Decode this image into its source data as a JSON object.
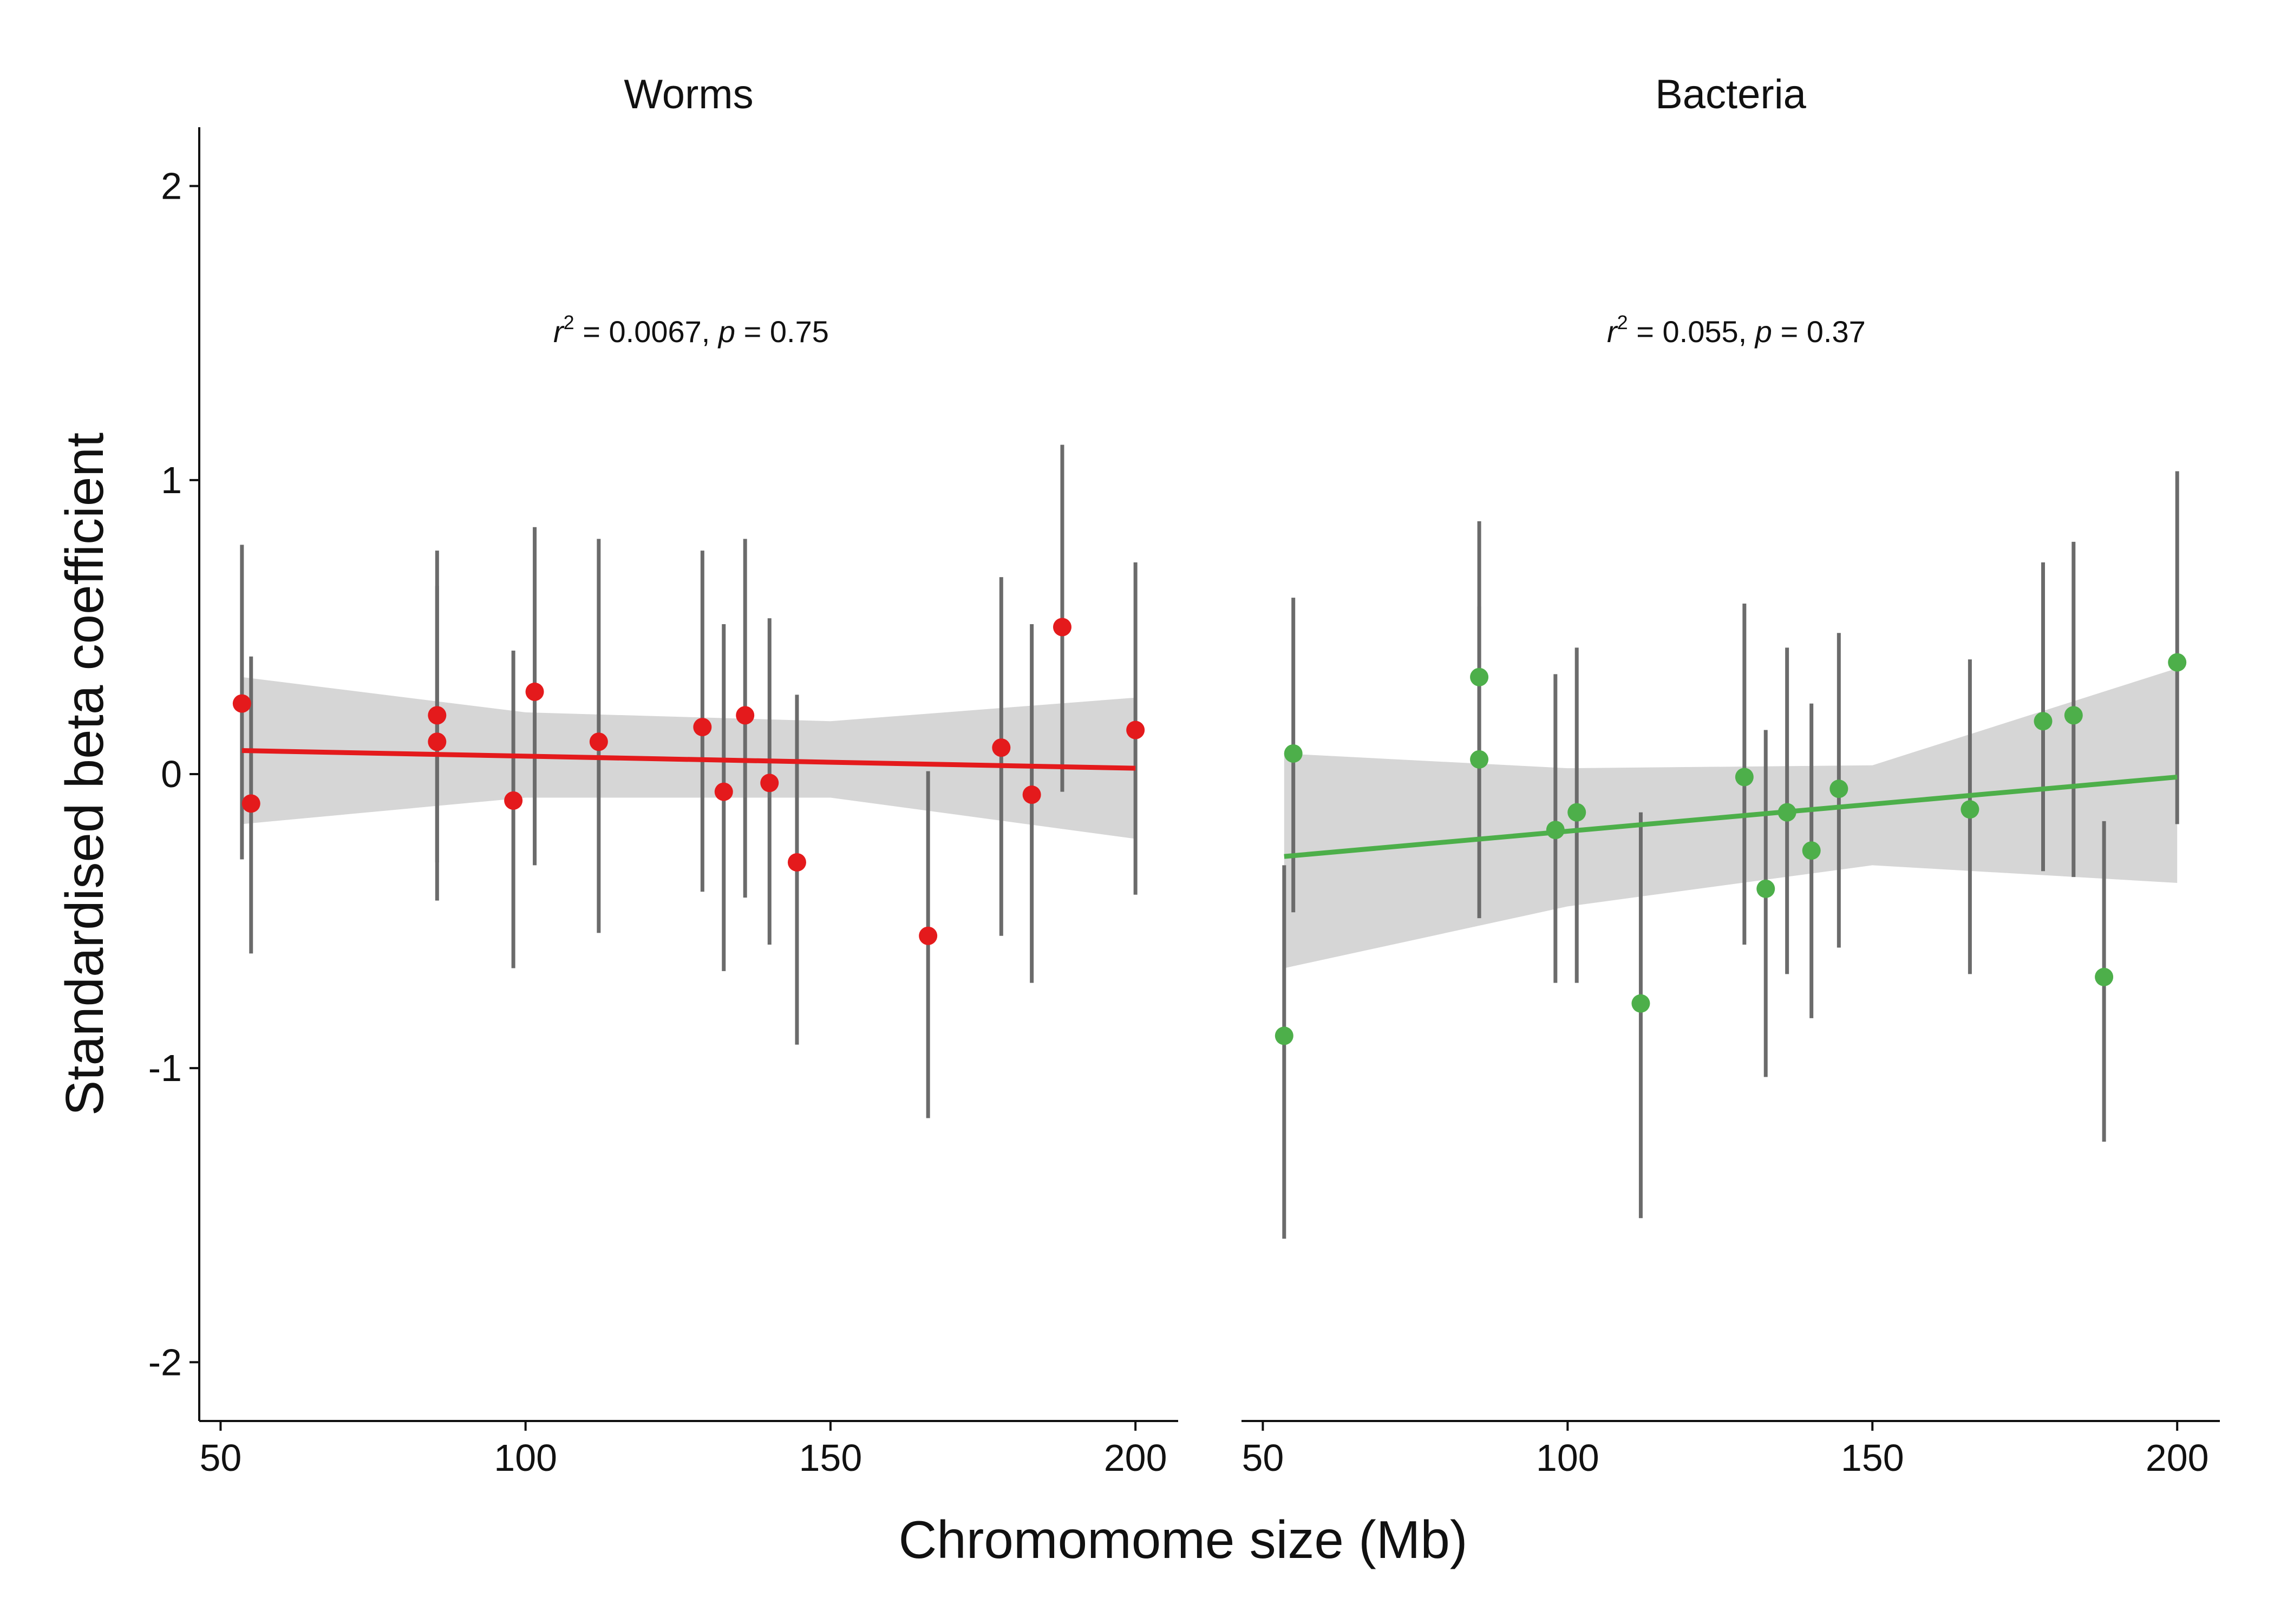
{
  "chart_data": {
    "type": "scatter",
    "xlabel": "Chromomome size (Mb)",
    "ylabel": "Standardised beta coefficient",
    "xlim": [
      46.5,
      207
    ],
    "ylim": [
      -2.2,
      2.2
    ],
    "x_ticks": [
      50,
      100,
      150,
      200
    ],
    "y_ticks": [
      2,
      1,
      0,
      -1,
      -2
    ],
    "y_tick_labels": [
      "2",
      "1",
      "0",
      "-1",
      "-2"
    ],
    "grid": false,
    "panels": [
      {
        "title": "Worms",
        "annotation": {
          "r2": "0.0067",
          "p": "0.75"
        },
        "point_color": "#e41a1c",
        "line_color": "#e41a1c",
        "band_color": "#d6d6d6",
        "fit": {
          "x": [
            53.5,
            200
          ],
          "y": [
            0.08,
            0.02
          ]
        },
        "band": {
          "x": [
            53.5,
            100,
            150,
            200
          ],
          "upper": [
            0.33,
            0.21,
            0.18,
            0.26
          ],
          "lower": [
            -0.17,
            -0.08,
            -0.08,
            -0.22
          ]
        },
        "points": [
          {
            "x": 53.5,
            "y": 0.24,
            "ymin": -0.29,
            "ymax": 0.78
          },
          {
            "x": 55,
            "y": -0.1,
            "ymin": -0.61,
            "ymax": 0.4
          },
          {
            "x": 85.5,
            "y": 0.2,
            "ymin": -0.3,
            "ymax": 0.76
          },
          {
            "x": 85.5,
            "y": 0.11,
            "ymin": -0.43,
            "ymax": 0.64
          },
          {
            "x": 98,
            "y": -0.09,
            "ymin": -0.66,
            "ymax": 0.42
          },
          {
            "x": 101.5,
            "y": 0.28,
            "ymin": -0.31,
            "ymax": 0.84
          },
          {
            "x": 112,
            "y": 0.11,
            "ymin": -0.54,
            "ymax": 0.8
          },
          {
            "x": 129,
            "y": 0.16,
            "ymin": -0.4,
            "ymax": 0.76
          },
          {
            "x": 132.5,
            "y": -0.06,
            "ymin": -0.67,
            "ymax": 0.51
          },
          {
            "x": 136,
            "y": 0.2,
            "ymin": -0.42,
            "ymax": 0.8
          },
          {
            "x": 140,
            "y": -0.03,
            "ymin": -0.58,
            "ymax": 0.53
          },
          {
            "x": 144.5,
            "y": -0.3,
            "ymin": -0.92,
            "ymax": 0.27
          },
          {
            "x": 166,
            "y": -0.55,
            "ymin": -1.17,
            "ymax": 0.01
          },
          {
            "x": 178,
            "y": 0.09,
            "ymin": -0.55,
            "ymax": 0.67
          },
          {
            "x": 183,
            "y": -0.07,
            "ymin": -0.71,
            "ymax": 0.51
          },
          {
            "x": 188,
            "y": 0.5,
            "ymin": -0.06,
            "ymax": 1.12
          },
          {
            "x": 200,
            "y": 0.15,
            "ymin": -0.41,
            "ymax": 0.72
          }
        ]
      },
      {
        "title": "Bacteria",
        "annotation": {
          "r2": "0.055",
          "p": "0.37"
        },
        "point_color": "#4daf4a",
        "line_color": "#4daf4a",
        "band_color": "#d6d6d6",
        "fit": {
          "x": [
            53.5,
            200
          ],
          "y": [
            -0.28,
            -0.01
          ]
        },
        "band": {
          "x": [
            53.5,
            100,
            150,
            200
          ],
          "upper": [
            0.07,
            0.02,
            0.03,
            0.36
          ],
          "lower": [
            -0.66,
            -0.45,
            -0.31,
            -0.37
          ]
        },
        "points": [
          {
            "x": 53.5,
            "y": -0.89,
            "ymin": -1.58,
            "ymax": -0.31
          },
          {
            "x": 55,
            "y": 0.07,
            "ymin": -0.47,
            "ymax": 0.6
          },
          {
            "x": 85.5,
            "y": 0.33,
            "ymin": -0.2,
            "ymax": 0.86
          },
          {
            "x": 85.5,
            "y": 0.05,
            "ymin": -0.49,
            "ymax": 0.57
          },
          {
            "x": 98,
            "y": -0.19,
            "ymin": -0.71,
            "ymax": 0.34
          },
          {
            "x": 101.5,
            "y": -0.13,
            "ymin": -0.71,
            "ymax": 0.43
          },
          {
            "x": 112,
            "y": -0.78,
            "ymin": -1.51,
            "ymax": -0.13
          },
          {
            "x": 129,
            "y": -0.01,
            "ymin": -0.58,
            "ymax": 0.58
          },
          {
            "x": 132.5,
            "y": -0.39,
            "ymin": -1.03,
            "ymax": 0.15
          },
          {
            "x": 136,
            "y": -0.13,
            "ymin": -0.68,
            "ymax": 0.43
          },
          {
            "x": 140,
            "y": -0.26,
            "ymin": -0.83,
            "ymax": 0.24
          },
          {
            "x": 144.5,
            "y": -0.05,
            "ymin": -0.59,
            "ymax": 0.48
          },
          {
            "x": 166,
            "y": -0.12,
            "ymin": -0.68,
            "ymax": 0.39
          },
          {
            "x": 178,
            "y": 0.18,
            "ymin": -0.33,
            "ymax": 0.72
          },
          {
            "x": 183,
            "y": 0.2,
            "ymin": -0.35,
            "ymax": 0.79
          },
          {
            "x": 188,
            "y": -0.69,
            "ymin": -1.25,
            "ymax": -0.16
          },
          {
            "x": 200,
            "y": 0.38,
            "ymin": -0.17,
            "ymax": 1.03
          }
        ]
      }
    ]
  }
}
